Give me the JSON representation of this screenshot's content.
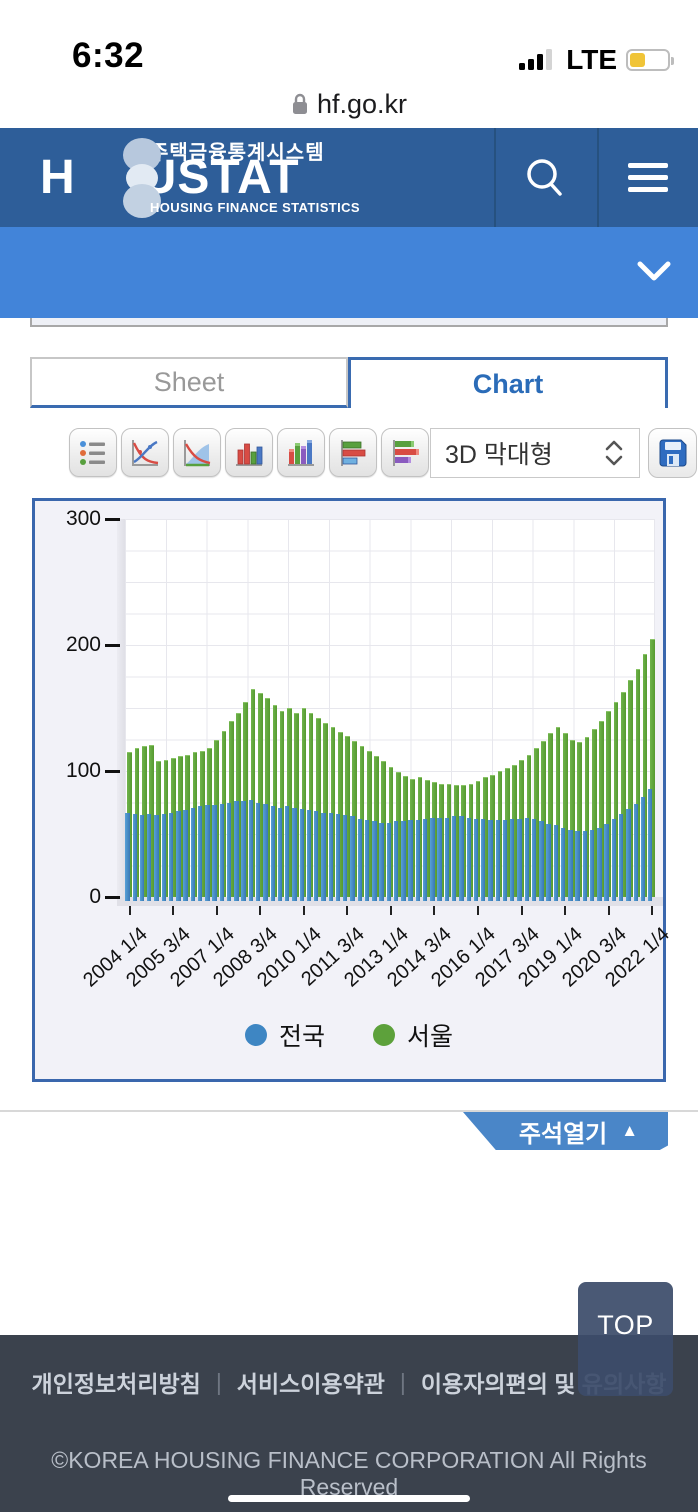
{
  "status_bar": {
    "time": "6:32",
    "network": "LTE"
  },
  "url_bar": {
    "domain": "hf.go.kr"
  },
  "header": {
    "logo_top": "주택금융통계시스템",
    "logo_left": "H",
    "logo_right": "USTAT",
    "logo_sub": "HOUSING FINANCE STATISTICS",
    "bar_color": "#2e5e99",
    "band_color": "#4284d9"
  },
  "tabs": {
    "sheet": "Sheet",
    "chart": "Chart",
    "active": "Chart"
  },
  "toolbar": {
    "chart_type_value": "3D 막대형",
    "icons": [
      "list-icon",
      "line-chart-icon",
      "area-chart-icon",
      "bar-chart-icon",
      "bar-3d-chart-icon",
      "hbar-chart-icon",
      "hbar-3d-chart-icon"
    ],
    "save": "save-icon"
  },
  "chart_data": {
    "type": "bar",
    "variant": "3d-column",
    "title": "",
    "xlabel": "",
    "ylabel": "",
    "ylim": [
      0,
      300
    ],
    "y_ticks": [
      0,
      100,
      200,
      300
    ],
    "grid": true,
    "legend_position": "bottom",
    "x_start": "2004 1/4",
    "x_end": "2022 1/4",
    "frequency": "quarterly",
    "x_tick_interval": 6,
    "x_tick_labels": [
      "2004 1/4",
      "2005 3/4",
      "2007 1/4",
      "2008 3/4",
      "2010 1/4",
      "2011 3/4",
      "2013 1/4",
      "2014 3/4",
      "2016 1/4",
      "2017 3/4",
      "2019 1/4",
      "2020 3/4",
      "2022 1/4"
    ],
    "series": [
      {
        "name": "전국",
        "color": "#3e86c3",
        "values": [
          67,
          66,
          65,
          66,
          65,
          66,
          67,
          68,
          69,
          71,
          72,
          73,
          73,
          74,
          75,
          76,
          76,
          77,
          75,
          74,
          72,
          71,
          72,
          71,
          70,
          69,
          68,
          67,
          67,
          66,
          65,
          64,
          62,
          61,
          60,
          59,
          59,
          60,
          60,
          61,
          61,
          62,
          63,
          63,
          63,
          64,
          64,
          63,
          62,
          62,
          61,
          61,
          61,
          62,
          62,
          63,
          62,
          60,
          58,
          57,
          55,
          53,
          52,
          52,
          53,
          55,
          58,
          62,
          66,
          70,
          74,
          79,
          86
        ]
      },
      {
        "name": "서울",
        "color": "#5da13b",
        "values": [
          115,
          118,
          120,
          121,
          108,
          109,
          110,
          112,
          113,
          115,
          116,
          118,
          125,
          132,
          140,
          146,
          155,
          165,
          162,
          158,
          152,
          148,
          150,
          146,
          150,
          146,
          142,
          138,
          135,
          131,
          128,
          124,
          120,
          116,
          112,
          108,
          103,
          99,
          96,
          94,
          95,
          93,
          91,
          90,
          90,
          89,
          89,
          90,
          92,
          95,
          97,
          100,
          102,
          105,
          109,
          113,
          118,
          124,
          130,
          135,
          130,
          125,
          123,
          127,
          133,
          140,
          148,
          155,
          163,
          172,
          181,
          193,
          205
        ]
      }
    ]
  },
  "annotation_button": {
    "label": "주석열기",
    "arrow": "▲"
  },
  "top_button": {
    "label": "TOP"
  },
  "footer": {
    "links": [
      "개인정보처리방침",
      "서비스이용약관",
      "이용자의편의 및 유의사항"
    ],
    "separator": "|",
    "copyright": "©KOREA HOUSING FINANCE CORPORATION All Rights Reserved"
  }
}
